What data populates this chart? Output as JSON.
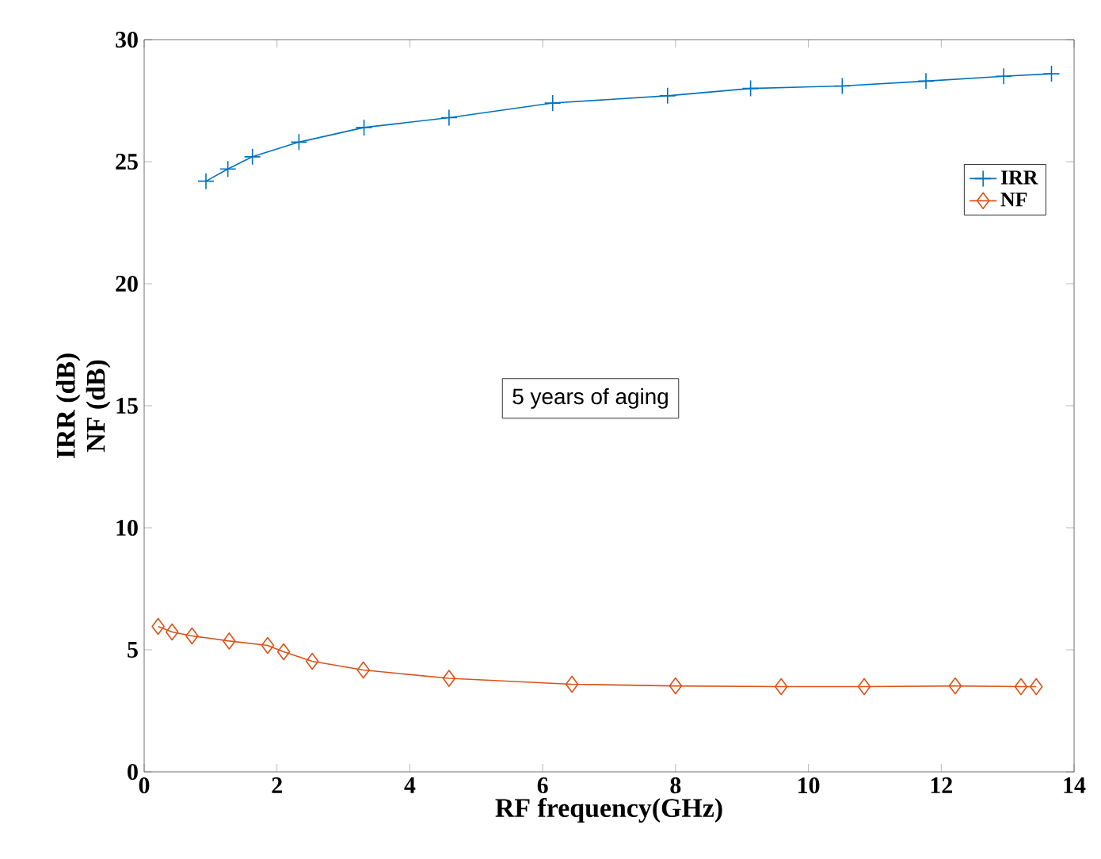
{
  "chart_data": {
    "type": "line",
    "xlabel": "RF frequency(GHz)",
    "ylabel": "IRR (dB)\nNF (dB)",
    "xlim": [
      0,
      14
    ],
    "xticks": [
      0,
      2,
      4,
      6,
      8,
      10,
      12,
      14
    ],
    "ylim": [
      0,
      30
    ],
    "yticks": [
      0,
      5,
      10,
      15,
      20,
      25,
      30
    ],
    "legend": "right",
    "grid": false,
    "line_style": "solid",
    "annotations": [
      "5 years of aging"
    ],
    "series": [
      {
        "name": "IRR",
        "color": "#0072bd",
        "marker": "cross",
        "x": [
          0.93,
          1.26,
          1.63,
          2.33,
          3.31,
          4.59,
          6.15,
          7.88,
          9.13,
          10.51,
          11.77,
          12.94,
          13.66
        ],
        "values": [
          24.2,
          24.7,
          25.2,
          25.8,
          26.4,
          26.8,
          27.4,
          27.7,
          28.0,
          28.1,
          28.3,
          28.5,
          28.6
        ]
      },
      {
        "name": "NF",
        "color": "#d95319",
        "marker": "diamond",
        "x": [
          0.21,
          0.42,
          0.72,
          1.28,
          1.86,
          2.1,
          2.53,
          3.3,
          4.59,
          6.44,
          8.0,
          9.59,
          10.84,
          12.21,
          13.2,
          13.43
        ],
        "values": [
          5.96,
          5.73,
          5.57,
          5.36,
          5.18,
          4.92,
          4.53,
          4.17,
          3.83,
          3.59,
          3.52,
          3.49,
          3.49,
          3.52,
          3.49,
          3.49
        ]
      }
    ]
  }
}
